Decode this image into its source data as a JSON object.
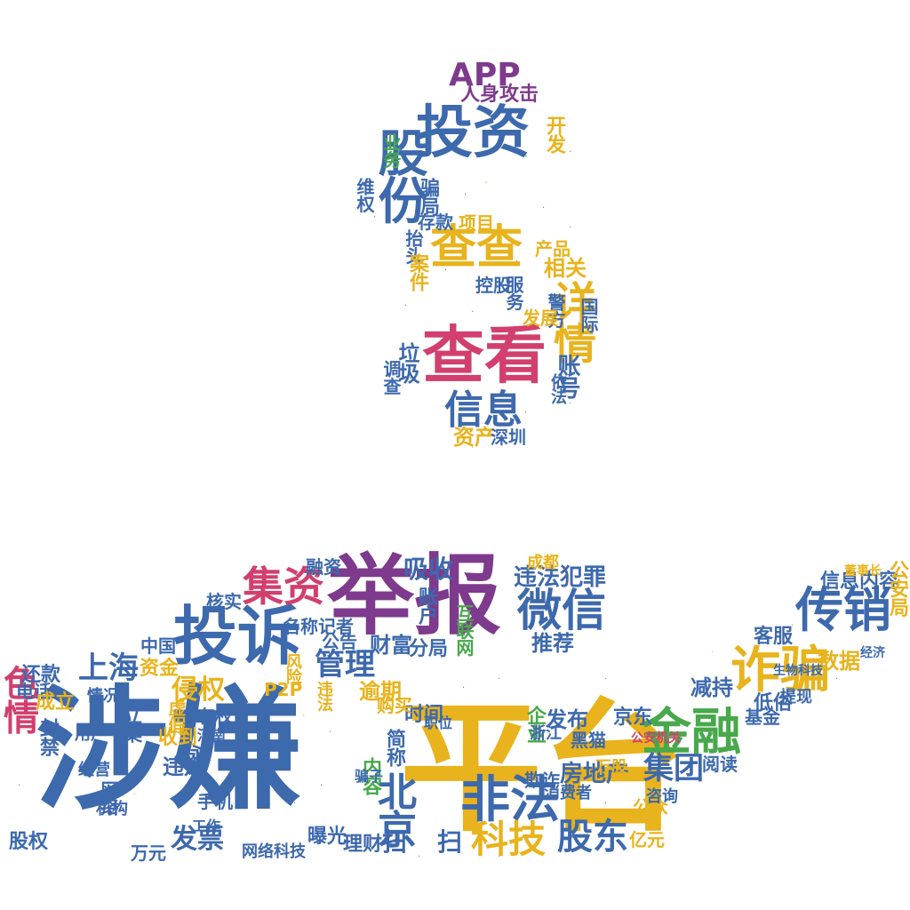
{
  "palette": {
    "blue": "#3d69ad",
    "purple": "#7e3a8c",
    "yellow": "#e8b31c",
    "green": "#48a84b",
    "pink": "#d23f6f",
    "orange": "#e87a2e",
    "teal": "#2aa198"
  },
  "words": [
    {
      "text": "涉嫌",
      "color": "#3d69ad"
    },
    {
      "text": "平台",
      "color": "#e8b31c"
    },
    {
      "text": "举报",
      "color": "#7e3a8c"
    },
    {
      "text": "投诉",
      "color": "#3d69ad"
    },
    {
      "text": "投资",
      "color": "#3d69ad"
    },
    {
      "text": "查看",
      "color": "#d23f6f"
    },
    {
      "text": "查查",
      "color": "#e8b31c"
    },
    {
      "text": "APP",
      "color": "#7e3a8c"
    },
    {
      "text": "股份",
      "color": "#3d69ad"
    },
    {
      "text": "详情",
      "color": "#e8b31c"
    },
    {
      "text": "信息",
      "color": "#3d69ad"
    },
    {
      "text": "传销",
      "color": "#3d69ad"
    },
    {
      "text": "诈骗",
      "color": "#e8b31c"
    },
    {
      "text": "金融",
      "color": "#48a84b"
    },
    {
      "text": "非法",
      "color": "#3d69ad"
    },
    {
      "text": "微信",
      "color": "#3d69ad"
    },
    {
      "text": "集资",
      "color": "#d23f6f"
    },
    {
      "text": "科技",
      "color": "#e8b31c"
    },
    {
      "text": "股东",
      "color": "#3d69ad"
    },
    {
      "text": "北京",
      "color": "#3d69ad"
    },
    {
      "text": "上海",
      "color": "#3d69ad"
    },
    {
      "text": "色情",
      "color": "#d23f6f"
    },
    {
      "text": "管理",
      "color": "#3d69ad"
    },
    {
      "text": "集团",
      "color": "#3d69ad"
    },
    {
      "text": "侵权",
      "color": "#e8b31c"
    },
    {
      "text": "发票",
      "color": "#3d69ad"
    },
    {
      "text": "人身攻击",
      "color": "#7e3a8c"
    },
    {
      "text": "开发",
      "color": "#e8b31c"
    },
    {
      "text": "业务",
      "color": "#48a84b"
    },
    {
      "text": "骗局",
      "color": "#3d69ad"
    },
    {
      "text": "维权",
      "color": "#3d69ad"
    },
    {
      "text": "抬头",
      "color": "#3d69ad"
    },
    {
      "text": "项目",
      "color": "#e8b31c"
    },
    {
      "text": "存款",
      "color": "#3d69ad"
    },
    {
      "text": "案件",
      "color": "#e8b31c"
    },
    {
      "text": "产品",
      "color": "#e8b31c"
    },
    {
      "text": "相关",
      "color": "#e8b31c"
    },
    {
      "text": "控股",
      "color": "#3d69ad"
    },
    {
      "text": "服务",
      "color": "#3d69ad"
    },
    {
      "text": "警方",
      "color": "#3d69ad"
    },
    {
      "text": "发展",
      "color": "#e8b31c"
    },
    {
      "text": "国际",
      "color": "#3d69ad"
    },
    {
      "text": "垃圾",
      "color": "#3d69ad"
    },
    {
      "text": "调查",
      "color": "#3d69ad"
    },
    {
      "text": "账号",
      "color": "#3d69ad"
    },
    {
      "text": "依法",
      "color": "#3d69ad"
    },
    {
      "text": "资产",
      "color": "#e8b31c"
    },
    {
      "text": "深圳",
      "color": "#3d69ad"
    },
    {
      "text": "吸收",
      "color": "#3d69ad"
    },
    {
      "text": "违法犯罪",
      "color": "#3d69ad"
    },
    {
      "text": "成都",
      "color": "#e8b31c"
    },
    {
      "text": "账户",
      "color": "#3d69ad"
    },
    {
      "text": "融资",
      "color": "#3d69ad"
    },
    {
      "text": "名称记者",
      "color": "#3d69ad"
    },
    {
      "text": "财富",
      "color": "#3d69ad"
    },
    {
      "text": "分局",
      "color": "#3d69ad"
    },
    {
      "text": "推荐",
      "color": "#3d69ad"
    },
    {
      "text": "互联网",
      "color": "#48a84b"
    },
    {
      "text": "公告",
      "color": "#3d69ad"
    },
    {
      "text": "核实",
      "color": "#3d69ad"
    },
    {
      "text": "信息内容",
      "color": "#3d69ad"
    },
    {
      "text": "公安局",
      "color": "#e8b31c"
    },
    {
      "text": "客服",
      "color": "#3d69ad"
    },
    {
      "text": "数据",
      "color": "#e8b31c"
    },
    {
      "text": "低俗",
      "color": "#3d69ad"
    },
    {
      "text": "减持",
      "color": "#3d69ad"
    },
    {
      "text": "基金",
      "color": "#3d69ad"
    },
    {
      "text": "资金",
      "color": "#e8b31c"
    },
    {
      "text": "中国",
      "color": "#3d69ad"
    },
    {
      "text": "还款",
      "color": "#3d69ad"
    },
    {
      "text": "电话",
      "color": "#3d69ad"
    },
    {
      "text": "成立",
      "color": "#e8b31c"
    },
    {
      "text": "封禁",
      "color": "#3d69ad"
    },
    {
      "text": "立案",
      "color": "#3d69ad"
    },
    {
      "text": "情况",
      "color": "#3d69ad"
    },
    {
      "text": "虚假",
      "color": "#e8b31c"
    },
    {
      "text": "有权",
      "color": "#3d69ad"
    },
    {
      "text": "收到",
      "color": "#e8b31c"
    },
    {
      "text": "违规",
      "color": "#3d69ad"
    },
    {
      "text": "永久",
      "color": "#3d69ad"
    },
    {
      "text": "手机",
      "color": "#3d69ad"
    },
    {
      "text": "用户",
      "color": "#3d69ad"
    },
    {
      "text": "逾期",
      "color": "#e8b31c"
    },
    {
      "text": "时间",
      "color": "#3d69ad"
    },
    {
      "text": "购买",
      "color": "#e8b31c"
    },
    {
      "text": "简称",
      "color": "#3d69ad"
    },
    {
      "text": "内容",
      "color": "#48a84b"
    },
    {
      "text": "扫",
      "color": "#3d69ad"
    },
    {
      "text": "扫",
      "color": "#3d69ad"
    },
    {
      "text": "企业",
      "color": "#48a84b"
    },
    {
      "text": "发布",
      "color": "#3d69ad"
    },
    {
      "text": "京东",
      "color": "#3d69ad"
    },
    {
      "text": "黑猫",
      "color": "#3d69ad"
    },
    {
      "text": "浙江",
      "color": "#3d69ad"
    },
    {
      "text": "欺诈",
      "color": "#3d69ad"
    },
    {
      "text": "房地产",
      "color": "#3d69ad"
    },
    {
      "text": "万股",
      "color": "#e8b31c"
    },
    {
      "text": "消费者",
      "color": "#3d69ad"
    },
    {
      "text": "公众",
      "color": "#e8b31c"
    },
    {
      "text": "咨询",
      "color": "#3d69ad"
    },
    {
      "text": "阅读",
      "color": "#3d69ad"
    },
    {
      "text": "提现",
      "color": "#3d69ad"
    },
    {
      "text": "亿元",
      "color": "#e8b31c"
    },
    {
      "text": "网络科技",
      "color": "#3d69ad"
    },
    {
      "text": "理财",
      "color": "#3d69ad"
    },
    {
      "text": "曝光",
      "color": "#3d69ad"
    },
    {
      "text": "股权",
      "color": "#3d69ad"
    },
    {
      "text": "万元",
      "color": "#3d69ad"
    },
    {
      "text": "网络",
      "color": "#3d69ad"
    },
    {
      "text": "经营",
      "color": "#3d69ad"
    },
    {
      "text": "机构",
      "color": "#3d69ad"
    },
    {
      "text": "工作",
      "color": "#3d69ad"
    },
    {
      "text": "河南",
      "color": "#3d69ad"
    },
    {
      "text": "P2P",
      "color": "#e8b31c"
    },
    {
      "text": "风险",
      "color": "#e8b31c"
    },
    {
      "text": "违法",
      "color": "#e8b31c"
    },
    {
      "text": "骗子",
      "color": "#3d69ad"
    },
    {
      "text": "职位",
      "color": "#3d69ad"
    },
    {
      "text": "公安机关",
      "color": "#d23f6f"
    },
    {
      "text": "董事长",
      "color": "#e8b31c"
    },
    {
      "text": "经济",
      "color": "#3d69ad"
    },
    {
      "text": "生物科技",
      "color": "#3d69ad"
    }
  ]
}
